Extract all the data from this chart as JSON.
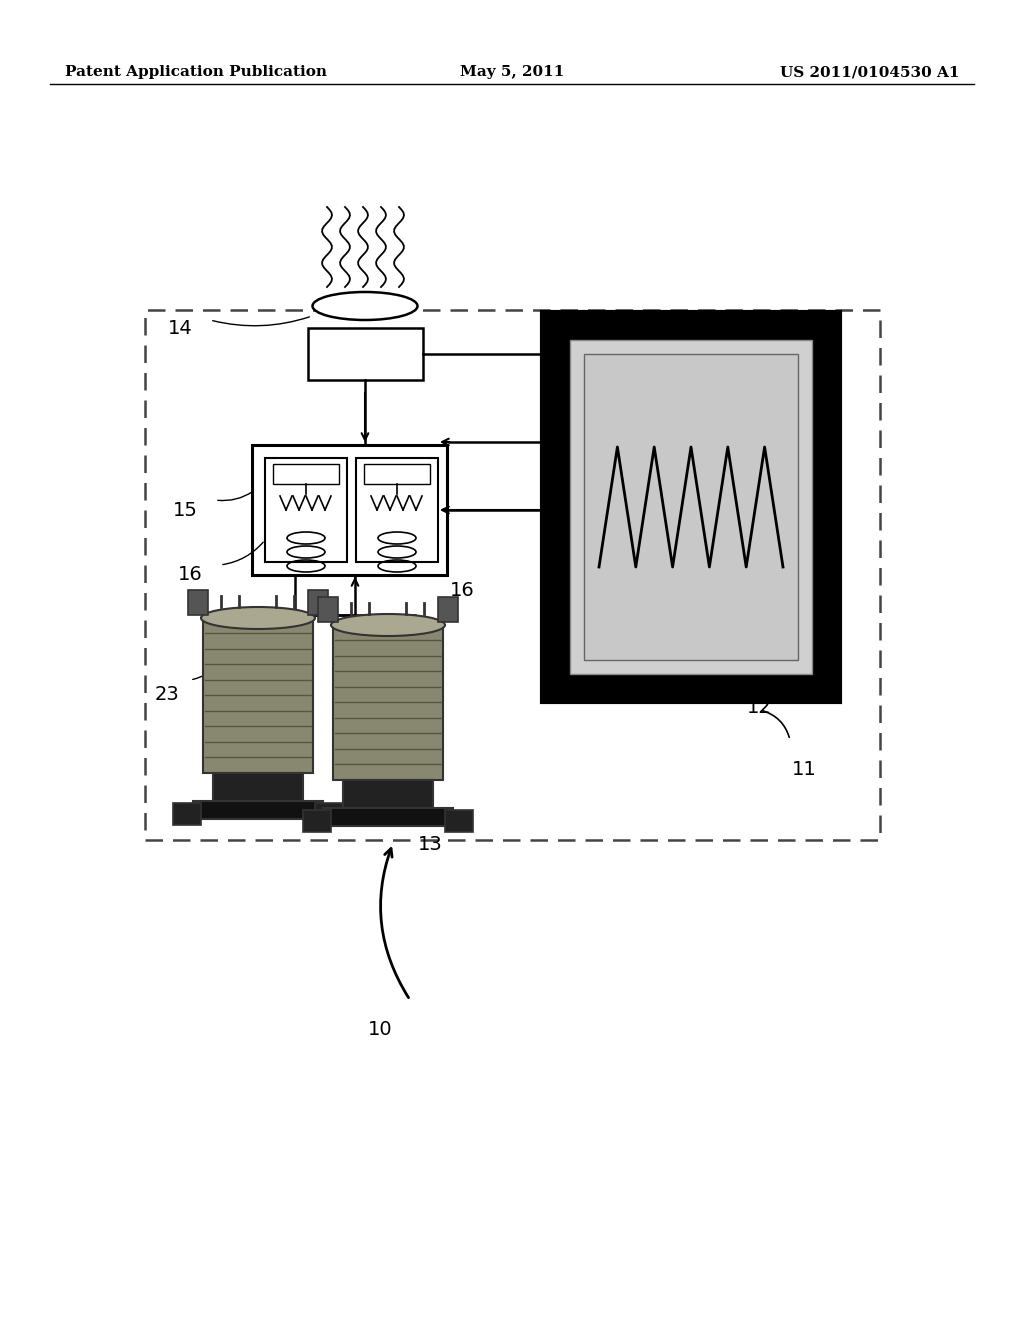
{
  "background_color": "#ffffff",
  "header_left": "Patent Application Publication",
  "header_center": "May 5, 2011",
  "header_right": "US 2011/0104530 A1",
  "label_10": "10",
  "label_11": "11",
  "label_12": "12",
  "label_13": "13",
  "label_14": "14",
  "label_15": "15",
  "label_16a": "16",
  "label_16b": "16",
  "label_23": "23",
  "line_color": "#000000"
}
